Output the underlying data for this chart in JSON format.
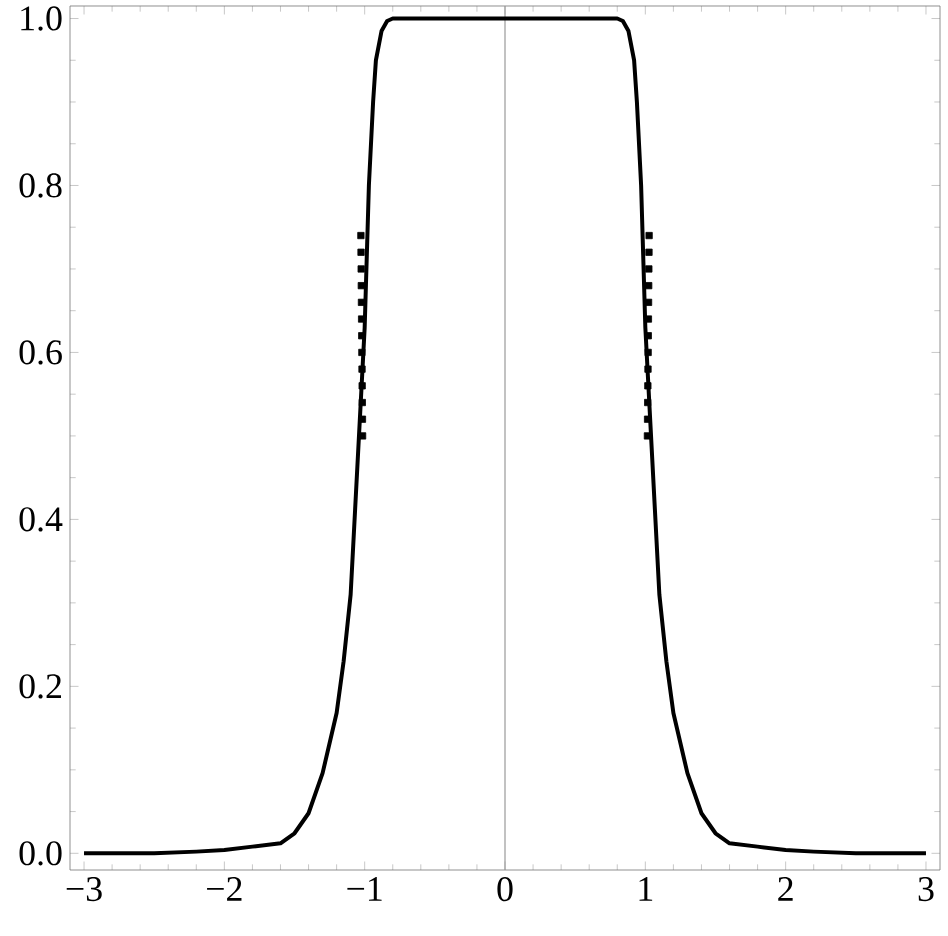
{
  "chart_data": {
    "type": "line",
    "x": [
      -3,
      -2.5,
      -2.2,
      -2,
      -1.8,
      -1.6,
      -1.5,
      -1.4,
      -1.3,
      -1.2,
      -1.15,
      -1.1,
      -1.05,
      -1.0,
      -0.97,
      -0.94,
      -0.92,
      -0.88,
      -0.84,
      -0.8,
      -0.5,
      0,
      0.5,
      0.8,
      0.84,
      0.88,
      0.92,
      0.94,
      0.97,
      1.0,
      1.05,
      1.1,
      1.15,
      1.2,
      1.3,
      1.4,
      1.5,
      1.6,
      1.8,
      2,
      2.2,
      2.5,
      3
    ],
    "series": [
      {
        "type": "line",
        "color": "#000000",
        "line_style": "solid",
        "marker": "none",
        "values": [
          0,
          0,
          0.002,
          0.004,
          0.008,
          0.012,
          0.024,
          0.048,
          0.096,
          0.168,
          0.23,
          0.31,
          0.47,
          0.63,
          0.8,
          0.9,
          0.95,
          0.985,
          0.997,
          1.0,
          1.0,
          1.0,
          1.0,
          1.0,
          0.997,
          0.985,
          0.95,
          0.9,
          0.8,
          0.63,
          0.47,
          0.31,
          0.23,
          0.168,
          0.096,
          0.048,
          0.024,
          0.012,
          0.008,
          0.004,
          0.002,
          0,
          0
        ]
      },
      {
        "type": "scatter",
        "color": "#000000",
        "marker": "square",
        "x": [
          -1.015,
          -1.016,
          -1.017,
          -1.018,
          -1.019,
          -1.02,
          -1.021,
          -1.022,
          -1.023,
          -1.024,
          -1.025,
          -1.026,
          -1.027,
          1.015,
          1.016,
          1.017,
          1.018,
          1.019,
          1.02,
          1.021,
          1.022,
          1.023,
          1.024,
          1.025,
          1.026,
          1.027
        ],
        "values": [
          0.5,
          0.52,
          0.54,
          0.56,
          0.58,
          0.6,
          0.62,
          0.64,
          0.66,
          0.68,
          0.7,
          0.72,
          0.74,
          0.5,
          0.52,
          0.54,
          0.56,
          0.58,
          0.6,
          0.62,
          0.64,
          0.66,
          0.68,
          0.7,
          0.72,
          0.74
        ]
      }
    ],
    "xlim": [
      -3.1,
      3.1
    ],
    "ylim": [
      -0.02,
      1.015
    ],
    "xticks": [
      {
        "value": -3,
        "label": "−3"
      },
      {
        "value": -2,
        "label": "−2"
      },
      {
        "value": -1,
        "label": "−1"
      },
      0,
      1,
      2,
      3
    ],
    "yticks": [
      {
        "value": 0,
        "label": "0.0"
      },
      {
        "value": 0.2,
        "label": "0.2"
      },
      {
        "value": 0.4,
        "label": "0.4"
      },
      {
        "value": 0.6,
        "label": "0.6"
      },
      {
        "value": 0.8,
        "label": "0.8"
      },
      {
        "value": 1,
        "label": "1.0"
      }
    ],
    "ref_lines": [
      {
        "axis": "x",
        "value": 0,
        "color": "#999999"
      }
    ]
  }
}
